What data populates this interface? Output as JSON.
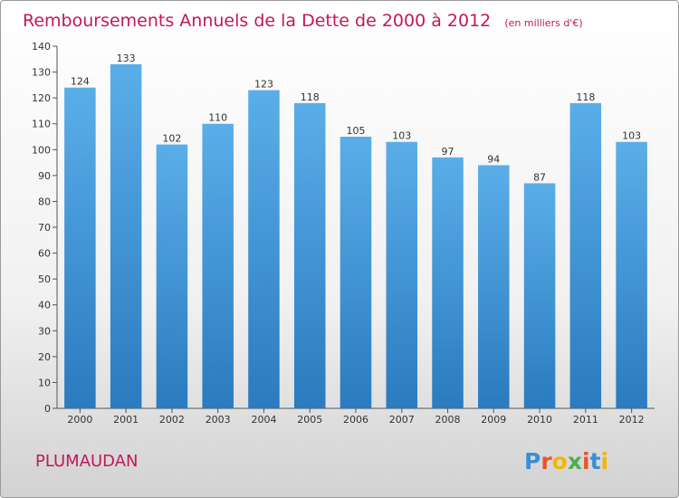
{
  "chart_data": {
    "type": "bar",
    "title": "Remboursements Annuels de la Dette de 2000 à 2012",
    "subtitle": "(en milliers d'€)",
    "categories": [
      "2000",
      "2001",
      "2002",
      "2003",
      "2004",
      "2005",
      "2006",
      "2007",
      "2008",
      "2009",
      "2010",
      "2011",
      "2012"
    ],
    "values": [
      124,
      133,
      102,
      110,
      123,
      118,
      105,
      103,
      97,
      94,
      87,
      118,
      103
    ],
    "ylim": [
      0,
      140
    ],
    "yticks": [
      0,
      10,
      20,
      30,
      40,
      50,
      60,
      70,
      80,
      90,
      100,
      110,
      120,
      130,
      140
    ],
    "grid": false,
    "bar_color_top": "#5aaee8",
    "bar_color_bottom": "#2a7bbf"
  },
  "footer": {
    "commune": "PLUMAUDAN",
    "brand": [
      "P",
      "r",
      "o",
      "x",
      "i",
      "t",
      "i"
    ],
    "brand_colors": [
      "#3a8fd6",
      "#e4572e",
      "#f2b705",
      "#4caf50",
      "#e4572e",
      "#3a8fd6",
      "#f2b705"
    ],
    "brand_icons": [
      "P-letter",
      "r-letter",
      "o-letter",
      "x-letter",
      "i-letter",
      "t-letter",
      "i-letter"
    ]
  }
}
